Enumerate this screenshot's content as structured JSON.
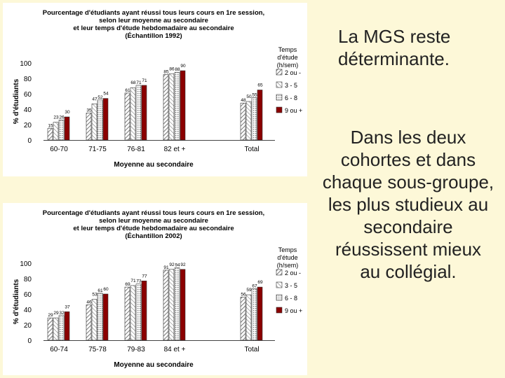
{
  "side_text": {
    "line1": "La MGS reste",
    "line2": "déterminante.",
    "para_lines": [
      "Dans les deux",
      "cohortes et dans",
      "chaque sous-groupe,",
      "les plus studieux au",
      "secondaire",
      "réussissent mieux",
      "au collégial."
    ]
  },
  "colors": {
    "series_1": "#b0b0b0",
    "series_2": "#e0e0e0",
    "series_3": "#d0d0d0",
    "series_4": "#8b0000"
  },
  "chart_data": [
    {
      "type": "bar",
      "title_lines": [
        "Pourcentage d'étudiants ayant réussi tous leurs cours en 1re session,",
        "selon leur moyenne au secondaire",
        "et leur temps d'étude hebdomadaire au secondaire",
        "(Échantillon 1992)"
      ],
      "ylabel": "% d'étudiants",
      "xlabel": "Moyenne au secondaire",
      "ylim": [
        0,
        100
      ],
      "yticks": [
        "0",
        "20",
        "40",
        "60",
        "80",
        "100"
      ],
      "categories": [
        "60-70",
        "71-75",
        "76-81",
        "82 et +",
        "Total"
      ],
      "legend_title": [
        "Temps",
        "d'étude",
        "(h/sem)"
      ],
      "legend_position": "right",
      "series": [
        {
          "name": "2 ou -",
          "values": [
            15,
            35,
            61,
            85,
            48
          ]
        },
        {
          "name": "3 - 5",
          "values": [
            23,
            47,
            68,
            86,
            50
          ]
        },
        {
          "name": "6 - 8",
          "values": [
            26,
            52,
            71,
            88,
            55
          ]
        },
        {
          "name": "9 ou +",
          "values": [
            30,
            54,
            71,
            90,
            65
          ]
        }
      ]
    },
    {
      "type": "bar",
      "title_lines": [
        "Pourcentage d'étudiants ayant réussi tous leurs cours en 1re session,",
        "selon leur moyenne au secondaire",
        "et leur temps d'étude hebdomadaire au secondaire",
        "(Échantillon 2002)"
      ],
      "ylabel": "% d'étudiants",
      "xlabel": "Moyenne au secondaire",
      "ylim": [
        0,
        100
      ],
      "yticks": [
        "0",
        "20",
        "40",
        "60",
        "80",
        "100"
      ],
      "categories": [
        "60-74",
        "75-78",
        "79-83",
        "84 et +",
        "Total"
      ],
      "legend_title": [
        "Temps",
        "d'étude",
        "(h/sem)"
      ],
      "legend_position": "right",
      "series": [
        {
          "name": "2 ou -",
          "values": [
            29,
            46,
            69,
            91,
            56
          ]
        },
        {
          "name": "3 - 5",
          "values": [
            29,
            53,
            71,
            92,
            59
          ]
        },
        {
          "name": "6 - 8",
          "values": [
            32,
            61,
            73,
            94,
            67
          ]
        },
        {
          "name": "9 ou +",
          "values": [
            37,
            60,
            77,
            92,
            69
          ]
        }
      ]
    }
  ]
}
